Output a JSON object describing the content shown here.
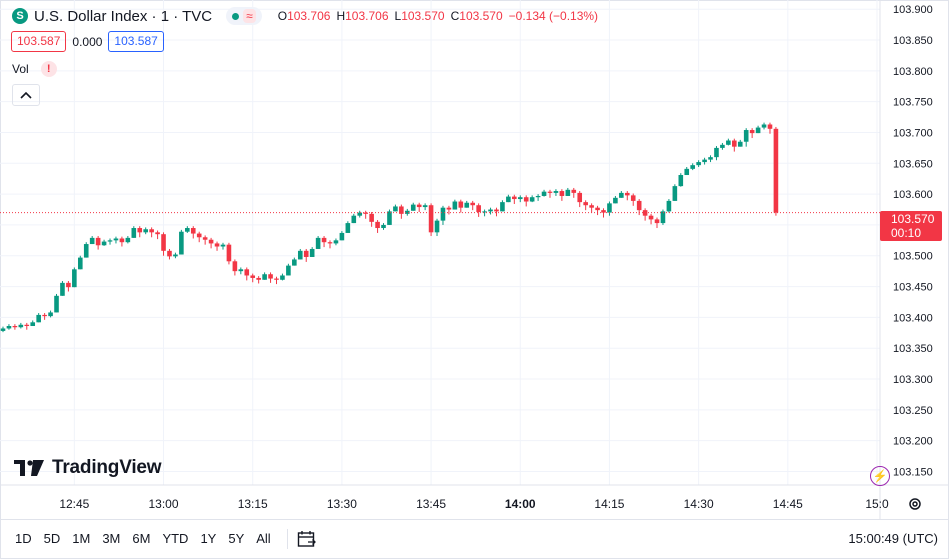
{
  "symbol": {
    "icon_letter": "S",
    "name": "U.S. Dollar Index · 1 · TVC",
    "open_label": "O",
    "open": "103.706",
    "high_label": "H",
    "high": "103.706",
    "low_label": "L",
    "low": "103.570",
    "close_label": "C",
    "close": "103.570",
    "change": "−0.134 (−0.13%)"
  },
  "quote": {
    "bid": "103.587",
    "spread": "0.000",
    "ask": "103.587"
  },
  "volume": {
    "label": "Vol",
    "warning": "!"
  },
  "colors": {
    "up": "#089981",
    "down": "#f23645",
    "grid": "#f0f3fa",
    "ask": "#2962ff",
    "accent_purple": "#9c27b0"
  },
  "last_price": {
    "value": "103.570",
    "countdown": "00:10"
  },
  "branding": {
    "logo_text": "TradingView"
  },
  "bottom_bar": {
    "ranges": [
      "1D",
      "5D",
      "1M",
      "3M",
      "6M",
      "YTD",
      "1Y",
      "5Y",
      "All"
    ],
    "clock": "15:00:49 (UTC)"
  },
  "icons": {
    "date_range": "calendar-icon",
    "settings": "gear-icon",
    "alert": "lightning-icon",
    "collapse": "chevron-up-icon"
  },
  "chart_data": {
    "type": "candlestick",
    "xlim": [
      "12:33",
      "15:00"
    ],
    "ylim": [
      103.128,
      103.915
    ],
    "y_ticks": [
      "103.900",
      "103.850",
      "103.800",
      "103.750",
      "103.700",
      "103.650",
      "103.600",
      "103.550",
      "103.500",
      "103.450",
      "103.400",
      "103.350",
      "103.300",
      "103.250",
      "103.200",
      "103.150"
    ],
    "y_tick_values": [
      103.9,
      103.85,
      103.8,
      103.75,
      103.7,
      103.65,
      103.6,
      103.55,
      103.5,
      103.45,
      103.4,
      103.35,
      103.3,
      103.25,
      103.2,
      103.15
    ],
    "x_ticks": [
      {
        "time": "12:45",
        "label": "12:45",
        "bold": false
      },
      {
        "time": "13:00",
        "label": "13:00",
        "bold": false
      },
      {
        "time": "13:15",
        "label": "13:15",
        "bold": false
      },
      {
        "time": "13:30",
        "label": "13:30",
        "bold": false
      },
      {
        "time": "13:45",
        "label": "13:45",
        "bold": false
      },
      {
        "time": "14:00",
        "label": "14:00",
        "bold": true
      },
      {
        "time": "14:15",
        "label": "14:15",
        "bold": false
      },
      {
        "time": "14:30",
        "label": "14:30",
        "bold": false
      },
      {
        "time": "14:45",
        "label": "14:45",
        "bold": false
      },
      {
        "time": "15:00",
        "label": "15:0",
        "bold": false
      }
    ],
    "last_price_value": 103.57,
    "start_time": "12:33",
    "closes": [
      103.382,
      103.386,
      103.384,
      103.388,
      103.386,
      103.392,
      103.404,
      103.402,
      103.408,
      103.435,
      103.456,
      103.449,
      103.478,
      103.497,
      103.519,
      103.529,
      103.517,
      103.523,
      103.525,
      103.528,
      103.522,
      103.529,
      103.545,
      103.538,
      103.543,
      103.538,
      103.535,
      103.508,
      103.499,
      103.502,
      103.539,
      103.545,
      103.536,
      103.53,
      103.526,
      103.52,
      103.515,
      103.518,
      103.491,
      103.475,
      103.478,
      103.468,
      103.464,
      103.461,
      103.47,
      103.463,
      103.461,
      103.468,
      103.484,
      103.494,
      103.508,
      103.498,
      103.511,
      103.529,
      103.522,
      103.52,
      103.525,
      103.537,
      103.553,
      103.565,
      103.57,
      103.568,
      103.555,
      103.545,
      103.55,
      103.572,
      103.58,
      103.568,
      103.573,
      103.583,
      103.579,
      103.582,
      103.538,
      103.557,
      103.578,
      103.575,
      103.588,
      103.578,
      103.586,
      103.582,
      103.571,
      103.572,
      103.575,
      103.572,
      103.587,
      103.596,
      103.592,
      103.595,
      103.588,
      103.595,
      103.597,
      103.604,
      103.602,
      103.605,
      103.597,
      103.607,
      103.602,
      103.587,
      103.582,
      103.578,
      103.574,
      103.57,
      103.585,
      103.594,
      103.602,
      103.598,
      103.589,
      103.574,
      103.565,
      103.559,
      103.553,
      103.572,
      103.589,
      103.613,
      103.631,
      103.641,
      103.647,
      103.652,
      103.656,
      103.66,
      103.675,
      103.68,
      103.687,
      103.677,
      103.685,
      103.704,
      103.699,
      103.708,
      103.713,
      103.706,
      103.57
    ],
    "lows": [
      103.376,
      103.38,
      103.38,
      103.382,
      103.38,
      103.386,
      103.398,
      103.396,
      103.4,
      103.426,
      103.448,
      103.442,
      103.47,
      103.488,
      103.51,
      103.52,
      103.51,
      103.516,
      103.518,
      103.52,
      103.515,
      103.52,
      103.536,
      103.53,
      103.535,
      103.53,
      103.527,
      103.5,
      103.494,
      103.496,
      103.53,
      103.537,
      103.528,
      103.522,
      103.518,
      103.512,
      103.508,
      103.51,
      103.486,
      103.468,
      103.47,
      103.46,
      103.457,
      103.455,
      103.462,
      103.456,
      103.454,
      103.46,
      103.475,
      103.486,
      103.5,
      103.49,
      103.503,
      103.52,
      103.514,
      103.512,
      103.517,
      103.528,
      103.545,
      103.557,
      103.562,
      103.56,
      103.547,
      103.537,
      103.542,
      103.563,
      103.572,
      103.56,
      103.565,
      103.575,
      103.571,
      103.574,
      103.532,
      103.532,
      103.55,
      103.567,
      103.58,
      103.57,
      103.578,
      103.574,
      103.563,
      103.564,
      103.567,
      103.564,
      103.572,
      103.588,
      103.584,
      103.587,
      103.58,
      103.587,
      103.589,
      103.596,
      103.594,
      103.597,
      103.589,
      103.599,
      103.594,
      103.579,
      103.574,
      103.57,
      103.566,
      103.562,
      103.565,
      103.586,
      103.594,
      103.59,
      103.581,
      103.566,
      103.557,
      103.551,
      103.545,
      103.55,
      103.57,
      103.591,
      103.612,
      103.633,
      103.639,
      103.644,
      103.648,
      103.652,
      103.655,
      103.672,
      103.679,
      103.669,
      103.677,
      103.677,
      103.691,
      103.7,
      103.705,
      103.698,
      103.565
    ]
  }
}
